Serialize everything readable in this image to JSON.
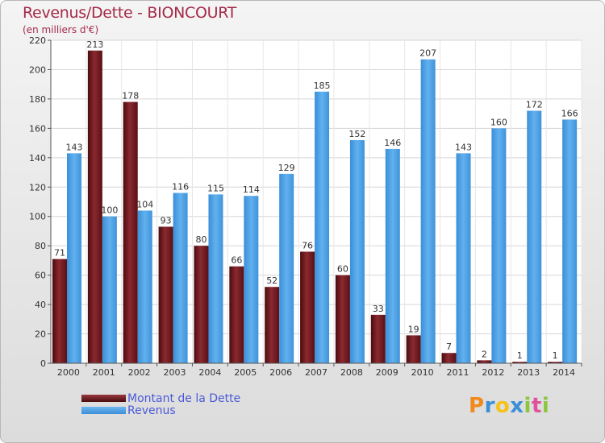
{
  "title": "Revenus/Dette - BIONCOURT",
  "subtitle": "(en milliers d'€)",
  "logo": {
    "name": "Proxiti",
    "letters": [
      "P",
      "r",
      "o",
      "x",
      "i",
      "t",
      "i"
    ]
  },
  "colors": {
    "debt": "#6b1519",
    "revenue": "#4ea3e6",
    "title": "#a52a4a",
    "legend": "#4a5ad8"
  },
  "chart_data": {
    "type": "bar",
    "categories": [
      "2000",
      "2001",
      "2002",
      "2003",
      "2004",
      "2005",
      "2006",
      "2007",
      "2008",
      "2009",
      "2010",
      "2011",
      "2012",
      "2013",
      "2014"
    ],
    "series": [
      {
        "name": "Montant de la Dette",
        "values": [
          71,
          213,
          178,
          93,
          80,
          66,
          52,
          76,
          60,
          33,
          19,
          7,
          2,
          1,
          1
        ]
      },
      {
        "name": "Revenus",
        "values": [
          143,
          100,
          104,
          116,
          115,
          114,
          129,
          185,
          152,
          146,
          207,
          143,
          160,
          172,
          166
        ]
      }
    ],
    "title": "Revenus/Dette - BIONCOURT",
    "ylabel": "(en milliers d'€)",
    "ylim": [
      0,
      220
    ],
    "yticks": [
      0,
      20,
      40,
      60,
      80,
      100,
      120,
      140,
      160,
      180,
      200,
      220
    ],
    "grid": true,
    "legend": "bottom-left"
  }
}
